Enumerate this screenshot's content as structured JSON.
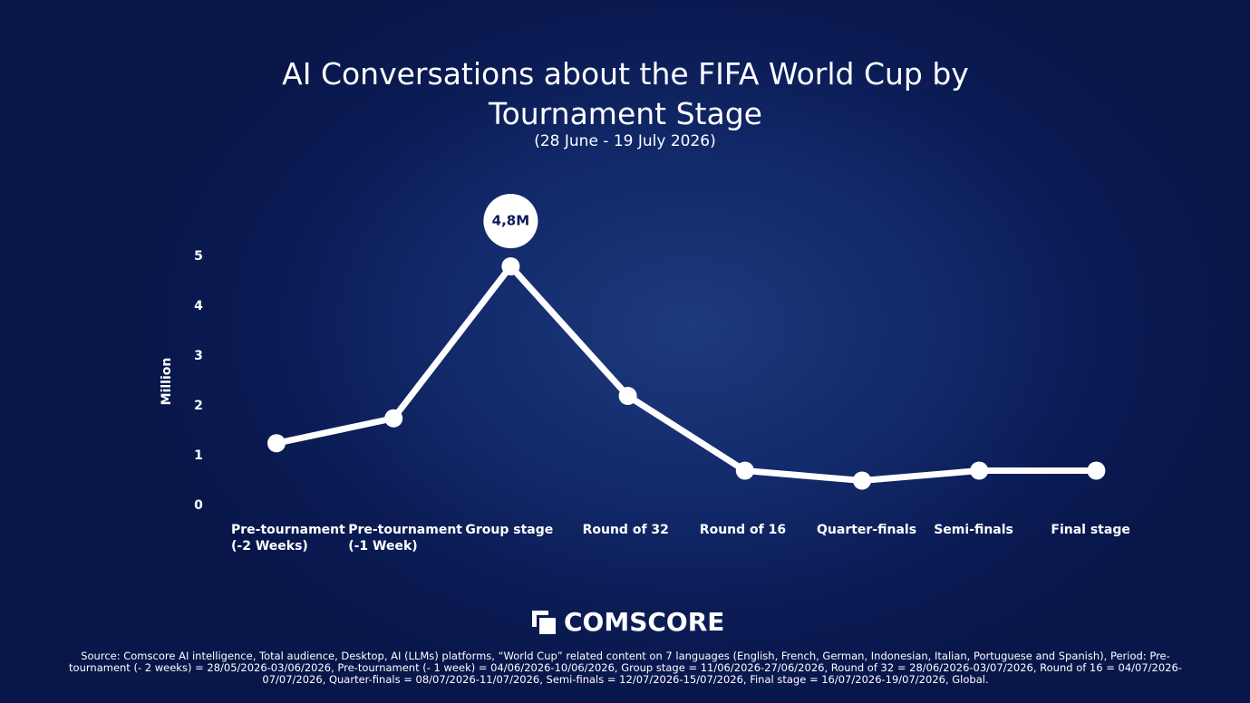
{
  "chart_data": {
    "type": "line",
    "title": "AI Conversations about the FIFA World Cup by Tournament Stage",
    "subtitle": "(28 June - 19 July 2026)",
    "y_label": "Million",
    "categories": [
      "Pre-tournament (-2 Weeks)",
      "Pre-tournament (-1 Week)",
      "Group stage",
      "Round of 32",
      "Round of 16",
      "Quarter-finals",
      "Semi-finals",
      "Final stage"
    ],
    "values": [
      1.25,
      1.75,
      4.8,
      2.2,
      0.7,
      0.5,
      0.7,
      0.7
    ],
    "value_labels": [
      null,
      null,
      "4,8M",
      null,
      null,
      null,
      null,
      null
    ],
    "color": "#ffffff",
    "ylim": [
      0,
      5
    ],
    "yticks": [
      0,
      1,
      2,
      3,
      4,
      5
    ],
    "grid": false,
    "logo": "COMSCORE",
    "source": "Source: Comscore AI intelligence, Total audience, Desktop, AI (LLMs) platforms, “World Cup” related content on 7 languages (English, French, German, Indonesian, Italian, Portuguese and Spanish), Period: Pre-tournament (- 2 weeks) = 28/05/2026-03/06/2026, Pre-tournament (- 1 week) = 04/06/2026-10/06/2026, Group stage = 11/06/2026-27/06/2026, Round of 32 = 28/06/2026-03/07/2026, Round of 16 = 04/07/2026-07/07/2026, Quarter-finals = 08/07/2026-11/07/2026, Semi-finals = 12/07/2026-15/07/2026, Final stage = 16/07/2026-19/07/2026, Global."
  }
}
